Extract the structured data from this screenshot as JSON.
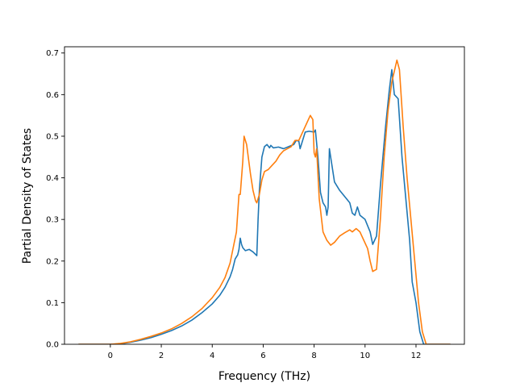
{
  "chart_data": {
    "type": "line",
    "title": "",
    "xlabel": "Frequency (THz)",
    "ylabel": "Partial Density of States",
    "xlim": [
      -1.8,
      13.9
    ],
    "ylim": [
      0.0,
      0.715
    ],
    "xticks": [
      0,
      2,
      4,
      6,
      8,
      10,
      12
    ],
    "yticks": [
      0.0,
      0.1,
      0.2,
      0.3,
      0.4,
      0.5,
      0.6,
      0.7
    ],
    "xtick_labels": [
      "0",
      "2",
      "4",
      "6",
      "8",
      "10",
      "12"
    ],
    "ytick_labels": [
      "0.0",
      "0.1",
      "0.2",
      "0.3",
      "0.4",
      "0.5",
      "0.6",
      "0.7"
    ],
    "grid": false,
    "legend": "none",
    "series": [
      {
        "color": "#1f77b4",
        "points": [
          [
            -1.25,
            0.0
          ],
          [
            0.0,
            0.0
          ],
          [
            0.4,
            0.001
          ],
          [
            0.8,
            0.005
          ],
          [
            1.2,
            0.01
          ],
          [
            1.6,
            0.016
          ],
          [
            2.0,
            0.024
          ],
          [
            2.4,
            0.033
          ],
          [
            2.8,
            0.044
          ],
          [
            3.2,
            0.058
          ],
          [
            3.6,
            0.076
          ],
          [
            4.0,
            0.097
          ],
          [
            4.3,
            0.118
          ],
          [
            4.5,
            0.137
          ],
          [
            4.7,
            0.162
          ],
          [
            4.8,
            0.18
          ],
          [
            4.9,
            0.205
          ],
          [
            5.0,
            0.215
          ],
          [
            5.05,
            0.228
          ],
          [
            5.1,
            0.255
          ],
          [
            5.15,
            0.24
          ],
          [
            5.2,
            0.232
          ],
          [
            5.3,
            0.225
          ],
          [
            5.45,
            0.228
          ],
          [
            5.6,
            0.222
          ],
          [
            5.75,
            0.213
          ],
          [
            5.8,
            0.3
          ],
          [
            5.85,
            0.37
          ],
          [
            5.95,
            0.45
          ],
          [
            6.05,
            0.475
          ],
          [
            6.15,
            0.48
          ],
          [
            6.25,
            0.472
          ],
          [
            6.3,
            0.478
          ],
          [
            6.4,
            0.472
          ],
          [
            6.6,
            0.474
          ],
          [
            6.8,
            0.47
          ],
          [
            7.0,
            0.475
          ],
          [
            7.2,
            0.48
          ],
          [
            7.3,
            0.49
          ],
          [
            7.4,
            0.488
          ],
          [
            7.45,
            0.47
          ],
          [
            7.55,
            0.49
          ],
          [
            7.65,
            0.51
          ],
          [
            7.8,
            0.512
          ],
          [
            8.0,
            0.51
          ],
          [
            8.05,
            0.515
          ],
          [
            8.15,
            0.45
          ],
          [
            8.25,
            0.365
          ],
          [
            8.35,
            0.34
          ],
          [
            8.45,
            0.33
          ],
          [
            8.5,
            0.31
          ],
          [
            8.55,
            0.33
          ],
          [
            8.6,
            0.47
          ],
          [
            8.7,
            0.43
          ],
          [
            8.8,
            0.39
          ],
          [
            9.0,
            0.37
          ],
          [
            9.2,
            0.355
          ],
          [
            9.4,
            0.34
          ],
          [
            9.5,
            0.315
          ],
          [
            9.6,
            0.31
          ],
          [
            9.7,
            0.33
          ],
          [
            9.8,
            0.31
          ],
          [
            10.0,
            0.3
          ],
          [
            10.2,
            0.27
          ],
          [
            10.3,
            0.24
          ],
          [
            10.45,
            0.26
          ],
          [
            10.6,
            0.38
          ],
          [
            10.8,
            0.52
          ],
          [
            10.95,
            0.61
          ],
          [
            11.05,
            0.66
          ],
          [
            11.15,
            0.6
          ],
          [
            11.3,
            0.59
          ],
          [
            11.45,
            0.45
          ],
          [
            11.6,
            0.35
          ],
          [
            11.75,
            0.25
          ],
          [
            11.85,
            0.15
          ],
          [
            12.0,
            0.1
          ],
          [
            12.15,
            0.03
          ],
          [
            12.3,
            0.0
          ],
          [
            13.35,
            0.0
          ]
        ]
      },
      {
        "color": "#ff7f0e",
        "points": [
          [
            -1.25,
            0.0
          ],
          [
            0.0,
            0.0
          ],
          [
            0.4,
            0.002
          ],
          [
            0.8,
            0.006
          ],
          [
            1.2,
            0.012
          ],
          [
            1.6,
            0.019
          ],
          [
            2.0,
            0.027
          ],
          [
            2.4,
            0.037
          ],
          [
            2.8,
            0.05
          ],
          [
            3.2,
            0.066
          ],
          [
            3.6,
            0.086
          ],
          [
            4.0,
            0.112
          ],
          [
            4.3,
            0.137
          ],
          [
            4.5,
            0.16
          ],
          [
            4.7,
            0.195
          ],
          [
            4.85,
            0.24
          ],
          [
            4.95,
            0.27
          ],
          [
            5.05,
            0.36
          ],
          [
            5.1,
            0.36
          ],
          [
            5.15,
            0.4
          ],
          [
            5.2,
            0.44
          ],
          [
            5.25,
            0.5
          ],
          [
            5.35,
            0.48
          ],
          [
            5.5,
            0.41
          ],
          [
            5.6,
            0.37
          ],
          [
            5.7,
            0.345
          ],
          [
            5.75,
            0.34
          ],
          [
            5.85,
            0.36
          ],
          [
            5.95,
            0.395
          ],
          [
            6.05,
            0.415
          ],
          [
            6.2,
            0.42
          ],
          [
            6.35,
            0.43
          ],
          [
            6.5,
            0.44
          ],
          [
            6.65,
            0.455
          ],
          [
            6.8,
            0.465
          ],
          [
            6.95,
            0.47
          ],
          [
            7.1,
            0.475
          ],
          [
            7.25,
            0.49
          ],
          [
            7.4,
            0.49
          ],
          [
            7.55,
            0.51
          ],
          [
            7.7,
            0.53
          ],
          [
            7.85,
            0.55
          ],
          [
            7.95,
            0.54
          ],
          [
            8.0,
            0.46
          ],
          [
            8.05,
            0.45
          ],
          [
            8.1,
            0.47
          ],
          [
            8.2,
            0.35
          ],
          [
            8.35,
            0.27
          ],
          [
            8.5,
            0.25
          ],
          [
            8.65,
            0.238
          ],
          [
            8.8,
            0.245
          ],
          [
            9.0,
            0.26
          ],
          [
            9.2,
            0.268
          ],
          [
            9.4,
            0.275
          ],
          [
            9.5,
            0.27
          ],
          [
            9.65,
            0.278
          ],
          [
            9.8,
            0.27
          ],
          [
            9.95,
            0.25
          ],
          [
            10.1,
            0.23
          ],
          [
            10.2,
            0.2
          ],
          [
            10.3,
            0.175
          ],
          [
            10.45,
            0.18
          ],
          [
            10.6,
            0.3
          ],
          [
            10.75,
            0.45
          ],
          [
            10.9,
            0.56
          ],
          [
            11.05,
            0.63
          ],
          [
            11.25,
            0.683
          ],
          [
            11.35,
            0.66
          ],
          [
            11.5,
            0.52
          ],
          [
            11.65,
            0.4
          ],
          [
            11.8,
            0.3
          ],
          [
            11.95,
            0.2
          ],
          [
            12.1,
            0.1
          ],
          [
            12.25,
            0.03
          ],
          [
            12.4,
            0.0
          ],
          [
            13.35,
            0.0
          ]
        ]
      }
    ]
  }
}
